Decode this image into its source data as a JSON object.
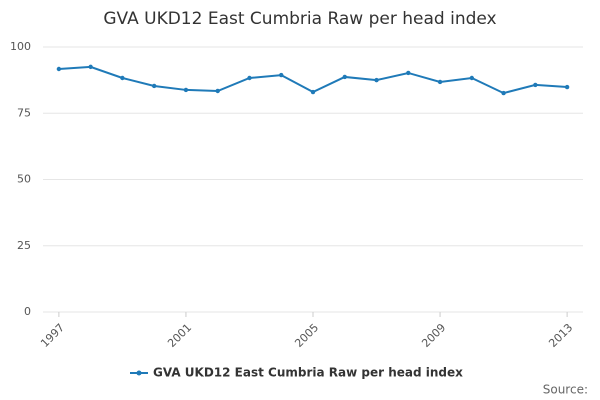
{
  "chart_data": {
    "type": "line",
    "title": "GVA UKD12 East Cumbria Raw per head index",
    "x": [
      1997,
      1998,
      1999,
      2000,
      2001,
      2002,
      2003,
      2004,
      2005,
      2006,
      2007,
      2008,
      2009,
      2010,
      2011,
      2012,
      2013
    ],
    "series": [
      {
        "name": "GVA UKD12 East Cumbria Raw per head index",
        "color": "#1f7ab8",
        "values": [
          91.7,
          92.5,
          88.3,
          85.3,
          83.8,
          83.4,
          88.3,
          89.4,
          83.0,
          88.7,
          87.5,
          90.2,
          86.8,
          88.3,
          82.6,
          85.7,
          84.9
        ]
      }
    ],
    "xlim": [
      1996.5,
      2013.5
    ],
    "xticks": [
      1997,
      2001,
      2005,
      2009,
      2013
    ],
    "ylim": [
      0,
      100
    ],
    "yticks": [
      0,
      25,
      50,
      75,
      100
    ],
    "grid": true,
    "source": "Source:"
  }
}
